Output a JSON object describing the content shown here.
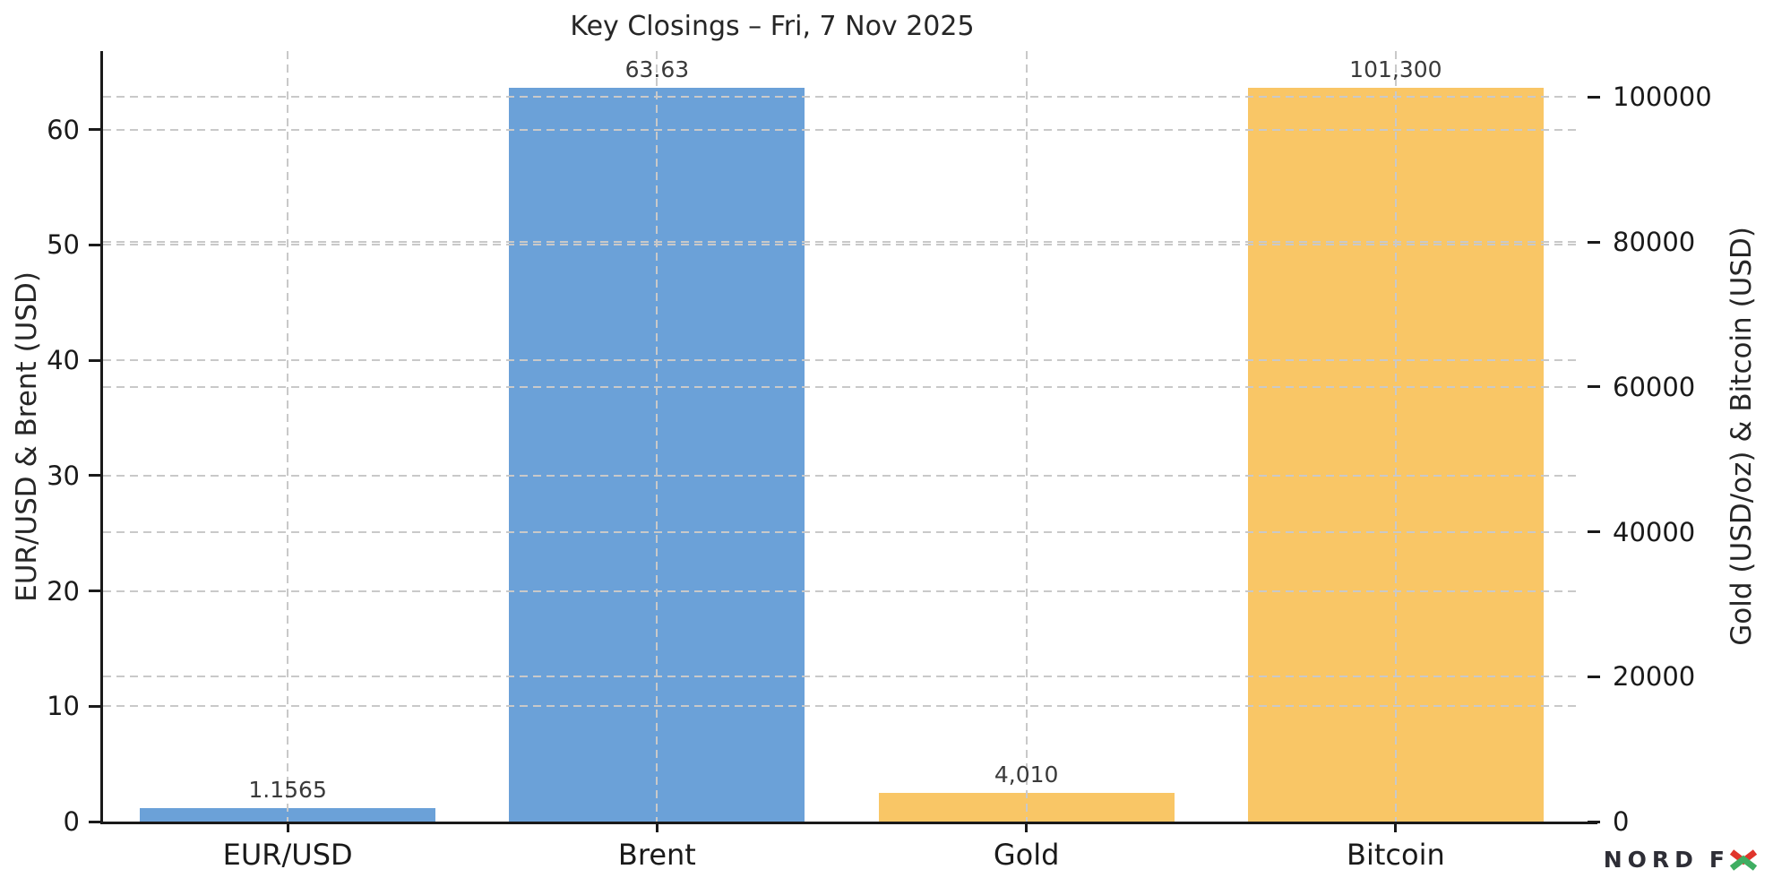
{
  "page": {
    "background": "#ffffff"
  },
  "chart_data": {
    "type": "bar",
    "title": "Key Closings – Fri, 7 Nov 2025",
    "categories": [
      "EUR/USD",
      "Brent",
      "Gold",
      "Bitcoin"
    ],
    "bars": [
      {
        "category": "EUR/USD",
        "value": 1.1565,
        "label": "1.1565",
        "axis": "left",
        "color": "#6ba1d8"
      },
      {
        "category": "Brent",
        "value": 63.63,
        "label": "63.63",
        "axis": "left",
        "color": "#6ba1d8"
      },
      {
        "category": "Gold",
        "value": 4010,
        "label": "4,010",
        "axis": "right",
        "color": "#f9c666"
      },
      {
        "category": "Bitcoin",
        "value": 101300,
        "label": "101,300",
        "axis": "right",
        "color": "#f9c666"
      }
    ],
    "left_axis": {
      "label": "EUR/USD & Brent (USD)",
      "ticks": [
        0,
        10,
        20,
        30,
        40,
        50,
        60
      ],
      "tick_labels": [
        "0",
        "10",
        "20",
        "30",
        "40",
        "50",
        "60"
      ],
      "max": 66.8
    },
    "right_axis": {
      "label": "Gold (USD/oz) & Bitcoin (USD)",
      "ticks": [
        0,
        20000,
        40000,
        60000,
        80000,
        100000
      ],
      "tick_labels": [
        "0",
        "20000",
        "40000",
        "60000",
        "80000",
        "100000"
      ],
      "max": 106365
    },
    "grid": {
      "horizontal": true,
      "vertical": true,
      "style": "dashed",
      "color": "#c9c9c9"
    },
    "spine_color": "#1a1a1a",
    "bar_width_fraction": 0.8,
    "legend": null
  },
  "logo": {
    "nord": "NORD",
    "f": "F",
    "x_red": "#e0352c",
    "x_green": "#3fae62",
    "text_color": "#2e2e36"
  }
}
